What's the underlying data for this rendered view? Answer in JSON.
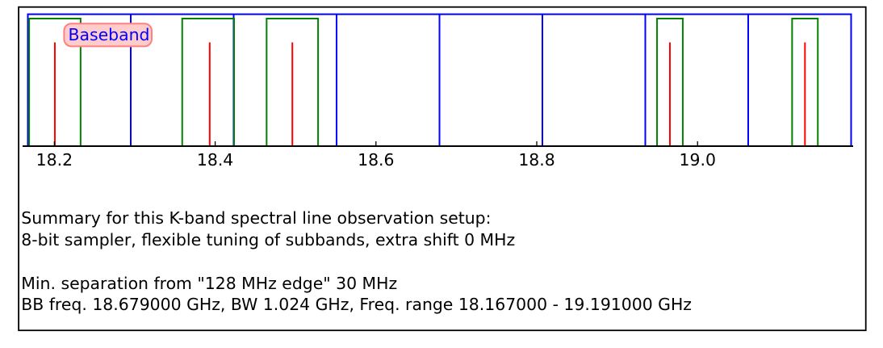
{
  "figure": {
    "kind": "matplotlib-style spectral line observation setup plot",
    "background_color": "#ffffff",
    "border_color": "#000000"
  },
  "chart_data": {
    "type": "line",
    "title": "",
    "xlabel": "",
    "ylabel": "",
    "x_unit": "GHz",
    "xlim": [
      18.1605,
      19.1935
    ],
    "grid": false,
    "legend": "none",
    "xticks": [
      18.2,
      18.4,
      18.6,
      18.8,
      19.0
    ],
    "xtick_labels": [
      "18.2",
      "18.4",
      "18.6",
      "18.8",
      "19.0"
    ],
    "annotation": {
      "label": "Baseband",
      "text_color": "#0000ff",
      "box_fill": "#ffcccc",
      "box_edge": "#ff8080",
      "anchor_ghz": 18.213
    },
    "baseband": {
      "start_ghz": 18.167,
      "end_ghz": 19.191,
      "bandwidth_ghz": 1.024,
      "center_ghz": 18.679,
      "edge_step_mhz": 128,
      "edges_ghz": [
        18.167,
        18.295,
        18.423,
        18.551,
        18.679,
        18.807,
        18.935,
        19.063,
        19.191
      ],
      "color": "#0000ff"
    },
    "subbands": {
      "color": "#008000",
      "items": [
        {
          "start_ghz": 18.1686,
          "end_ghz": 18.2326,
          "bw_mhz": 64
        },
        {
          "start_ghz": 18.359,
          "end_ghz": 18.4235,
          "bw_mhz": 64
        },
        {
          "start_ghz": 18.464,
          "end_ghz": 18.528,
          "bw_mhz": 64
        },
        {
          "start_ghz": 18.9496,
          "end_ghz": 18.9816,
          "bw_mhz": 32
        },
        {
          "start_ghz": 19.1176,
          "end_ghz": 19.1496,
          "bw_mhz": 32
        }
      ]
    },
    "spectral_lines": {
      "color": "#ff0000",
      "freqs_ghz": [
        18.2006,
        18.3932,
        18.496,
        18.9656,
        19.1336
      ]
    }
  },
  "summary": {
    "line1": "Summary for this K-band spectral line observation setup:",
    "line2": "8-bit sampler, flexible tuning of subbands, extra shift 0 MHz",
    "line3": "Min. separation from \"128 MHz edge\" 30 MHz",
    "line4": "BB freq. 18.679000 GHz, BW 1.024 GHz, Freq. range 18.167000 - 19.191000 GHz"
  }
}
